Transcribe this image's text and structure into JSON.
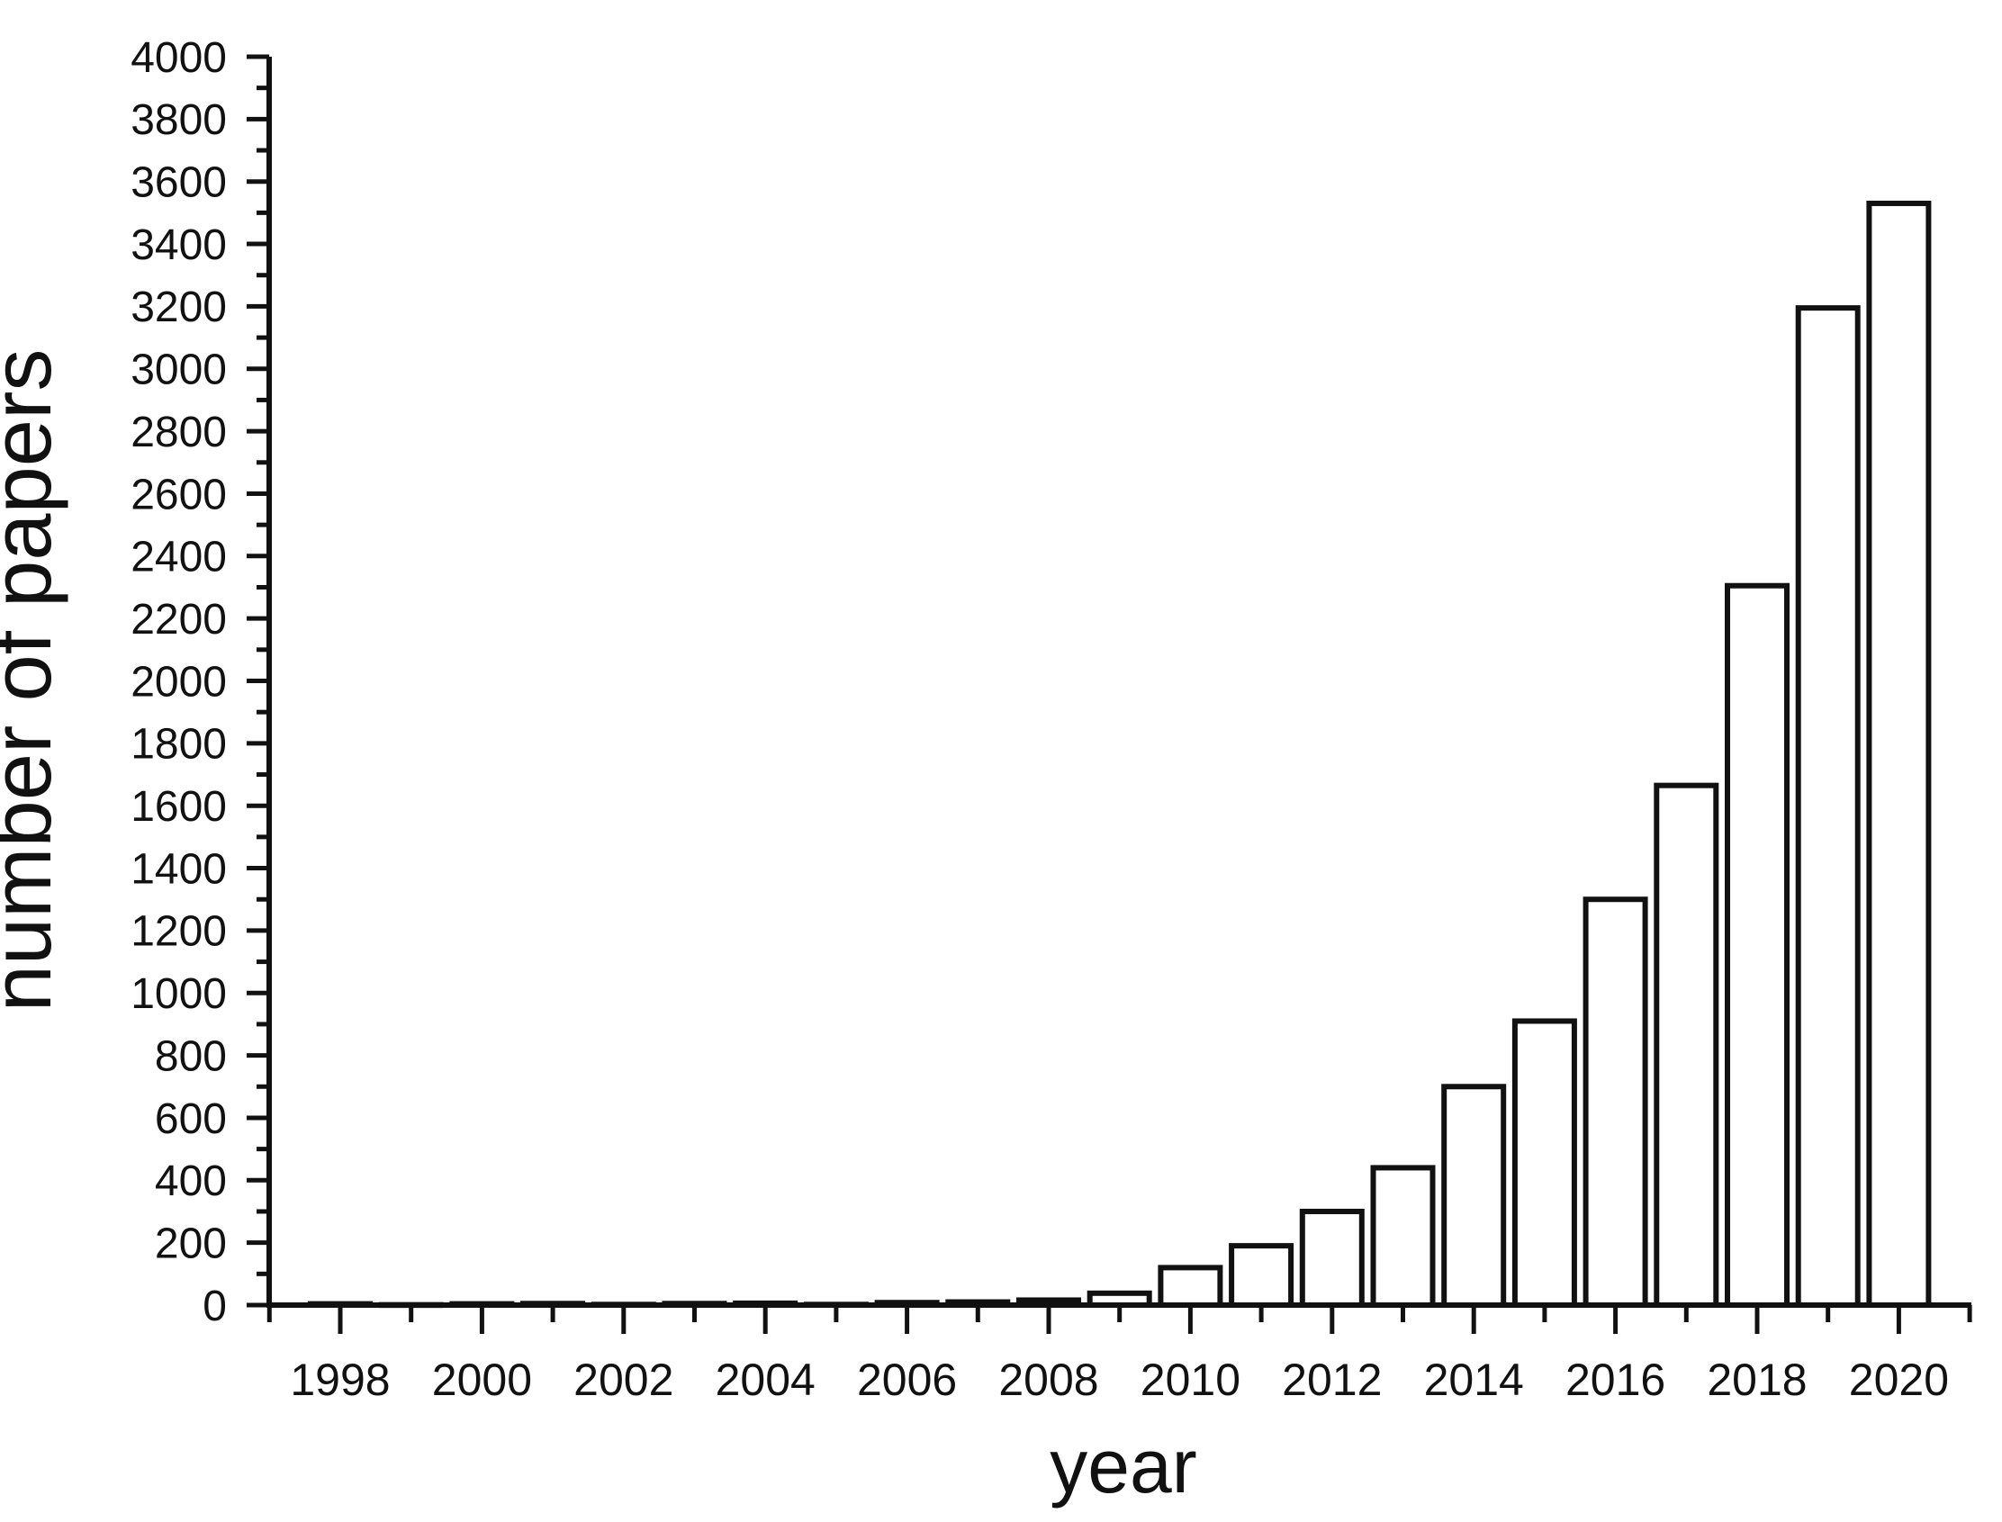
{
  "chart_data": {
    "type": "bar",
    "title": "",
    "xlabel": "year",
    "ylabel": "number of papers",
    "categories": [
      1998,
      1999,
      2000,
      2001,
      2002,
      2003,
      2004,
      2005,
      2006,
      2007,
      2008,
      2009,
      2010,
      2011,
      2012,
      2013,
      2014,
      2015,
      2016,
      2017,
      2018,
      2019,
      2020
    ],
    "values": [
      4,
      1,
      4,
      5,
      2,
      5,
      6,
      2,
      8,
      10,
      16,
      38,
      120,
      190,
      300,
      440,
      700,
      910,
      1300,
      1665,
      2305,
      3195,
      3530
    ],
    "ylim": [
      0,
      4000
    ],
    "ytick_major_step": 200,
    "ytick_minor_step": 100,
    "xtick_labeled_every_years": 2,
    "x_tick_labels": [
      "1998",
      "2000",
      "2002",
      "2004",
      "2006",
      "2008",
      "2010",
      "2012",
      "2014",
      "2016",
      "2018",
      "2020"
    ],
    "grid": "off",
    "legend": "none",
    "bar_fill": "#ffffff",
    "bar_stroke": "#111111",
    "axis_color": "#111111",
    "background_color": "#ffffff"
  }
}
